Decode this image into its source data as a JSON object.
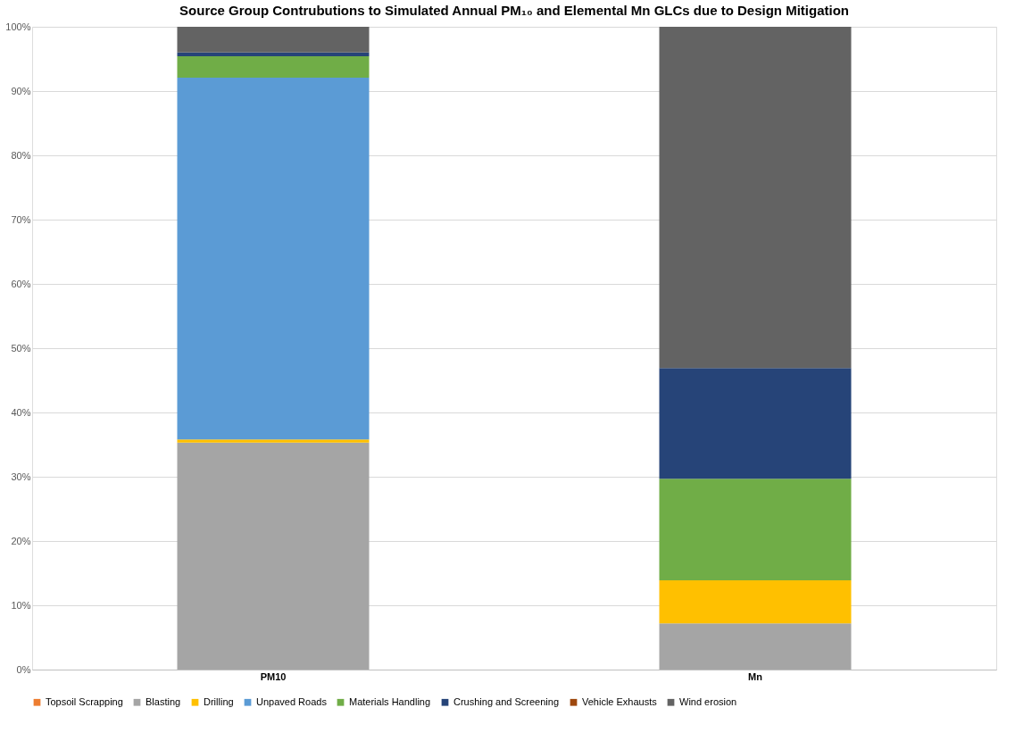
{
  "chart_data": {
    "type": "bar",
    "title": "Source Group Contrubutions to Simulated Annual PM₁₀ and Elemental Mn GLCs due to Design Mitigation",
    "categories": [
      "PM10",
      "Mn"
    ],
    "stacked": true,
    "series": [
      {
        "name": "Topsoil Scrapping",
        "color": "#ed7d31",
        "values": [
          0,
          0
        ]
      },
      {
        "name": "Blasting",
        "color": "#a5a5a5",
        "values": [
          35.3,
          7.2
        ]
      },
      {
        "name": "Drilling",
        "color": "#ffc000",
        "values": [
          0.5,
          6.7
        ]
      },
      {
        "name": "Unpaved Roads",
        "color": "#5b9bd5",
        "values": [
          56.3,
          0
        ]
      },
      {
        "name": "Materials Handling",
        "color": "#70ad47",
        "values": [
          3.3,
          15.8
        ]
      },
      {
        "name": "Crushing and Screening",
        "color": "#264478",
        "values": [
          0.6,
          17.2
        ]
      },
      {
        "name": "Vehicle Exhausts",
        "color": "#9e480e",
        "values": [
          0,
          0
        ]
      },
      {
        "name": "Wind erosion",
        "color": "#636363",
        "values": [
          4.0,
          53.1
        ]
      }
    ],
    "ylim": [
      0,
      100
    ],
    "yticks": [
      {
        "value": 0,
        "label": "0%"
      },
      {
        "value": 10,
        "label": "10%"
      },
      {
        "value": 20,
        "label": "20%"
      },
      {
        "value": 30,
        "label": "30%"
      },
      {
        "value": 40,
        "label": "40%"
      },
      {
        "value": 50,
        "label": "50%"
      },
      {
        "value": 60,
        "label": "60%"
      },
      {
        "value": 70,
        "label": "70%"
      },
      {
        "value": 80,
        "label": "80%"
      },
      {
        "value": 90,
        "label": "90%"
      },
      {
        "value": 100,
        "label": "100%"
      }
    ],
    "grid": "y",
    "legend": "bottom"
  }
}
